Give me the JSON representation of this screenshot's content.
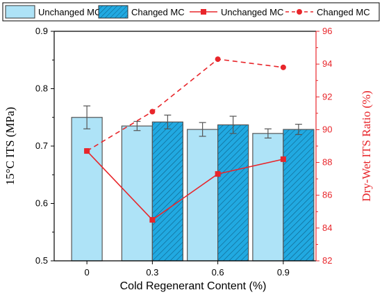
{
  "chart_data": {
    "type": "bar+line",
    "categories": [
      "0",
      "0.3",
      "0.6",
      "0.9"
    ],
    "xlabel": "Cold Regenerant Content (%)",
    "ylabel": "15°C  ITS (MPa)",
    "y2label": "Dry-Wet  ITS  Ratio (%)",
    "ylim": [
      0.5,
      0.9
    ],
    "yticks": [
      "0.5",
      "0.6",
      "0.7",
      "0.8",
      "0.9"
    ],
    "y2lim": [
      82,
      96
    ],
    "y2ticks": [
      "82",
      "84",
      "86",
      "88",
      "90",
      "92",
      "94",
      "96"
    ],
    "bar_series": [
      {
        "name": "Unchanged MC",
        "values": [
          0.75,
          0.735,
          0.729,
          0.722
        ],
        "errors": [
          0.02,
          0.008,
          0.012,
          0.008
        ],
        "color": "#aee3f7",
        "pattern": "none"
      },
      {
        "name": "Changed MC",
        "values": [
          null,
          0.742,
          0.737,
          0.729
        ],
        "errors": [
          null,
          0.012,
          0.015,
          0.009
        ],
        "color": "#21a9e1",
        "pattern": "hatch"
      }
    ],
    "line_series": [
      {
        "name": "Unchanged MC",
        "values": [
          88.7,
          84.5,
          87.3,
          88.2
        ],
        "color": "#e8262b",
        "style": "solid",
        "marker": "square"
      },
      {
        "name": "Changed MC",
        "values": [
          88.7,
          91.1,
          94.3,
          93.8
        ],
        "color": "#e8262b",
        "style": "dashed",
        "marker": "circle"
      }
    ],
    "legend_position": "top"
  }
}
